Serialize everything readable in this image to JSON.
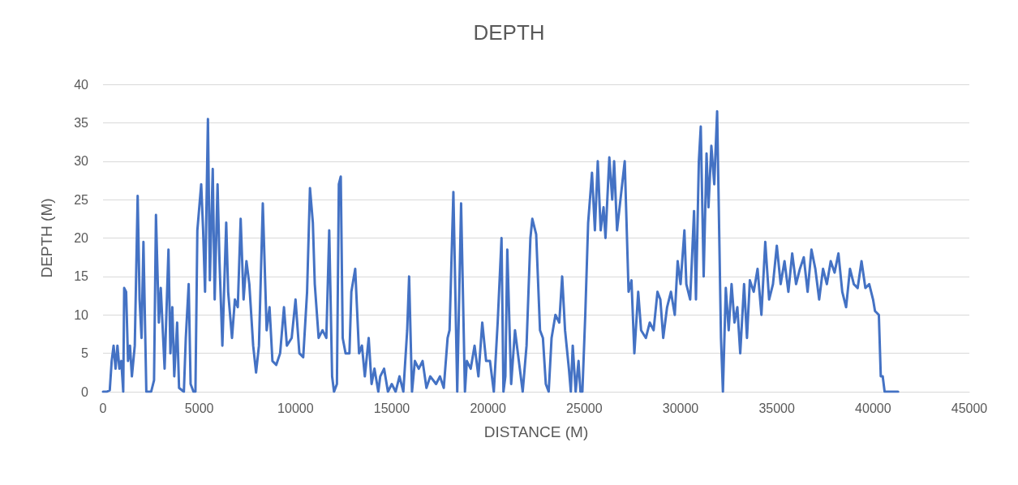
{
  "chart_data": {
    "type": "line",
    "title": "DEPTH",
    "xlabel": "DISTANCE (M)",
    "ylabel": "DEPTH (M)",
    "xlim": [
      0,
      45000
    ],
    "xticks": [
      0,
      5000,
      10000,
      15000,
      20000,
      25000,
      30000,
      35000,
      40000,
      45000
    ],
    "ylim": [
      0,
      40
    ],
    "yticks": [
      0,
      5,
      10,
      15,
      20,
      25,
      30,
      35,
      40
    ],
    "grid": "y",
    "marker": "none",
    "line_style": "solid",
    "x": [
      0,
      200,
      350,
      450,
      550,
      650,
      750,
      850,
      950,
      1050,
      1100,
      1200,
      1300,
      1400,
      1500,
      1650,
      1800,
      1900,
      2000,
      2100,
      2250,
      2500,
      2650,
      2750,
      2900,
      3000,
      3200,
      3400,
      3500,
      3600,
      3700,
      3850,
      3950,
      4200,
      4300,
      4450,
      4550,
      4700,
      4800,
      4900,
      5000,
      5100,
      5200,
      5300,
      5450,
      5550,
      5700,
      5800,
      5950,
      6050,
      6200,
      6400,
      6500,
      6700,
      6850,
      7000,
      7150,
      7300,
      7450,
      7600,
      7800,
      7950,
      8100,
      8300,
      8500,
      8650,
      8800,
      9000,
      9200,
      9400,
      9550,
      9800,
      10000,
      10200,
      10400,
      10600,
      10750,
      10900,
      11000,
      11200,
      11400,
      11600,
      11750,
      11900,
      12000,
      12150,
      12250,
      12350,
      12450,
      12600,
      12800,
      12900,
      13100,
      13300,
      13450,
      13600,
      13800,
      13950,
      14100,
      14300,
      14400,
      14600,
      14800,
      15000,
      15200,
      15400,
      15600,
      15800,
      15900,
      16050,
      16200,
      16400,
      16600,
      16800,
      17000,
      17300,
      17500,
      17700,
      17900,
      18000,
      18200,
      18400,
      18600,
      18800,
      18900,
      19100,
      19300,
      19500,
      19700,
      19900,
      20100,
      20300,
      20500,
      20700,
      20800,
      20900,
      21000,
      21200,
      21400,
      21600,
      21800,
      22000,
      22200,
      22300,
      22500,
      22700,
      22850,
      23000,
      23150,
      23300,
      23500,
      23700,
      23850,
      24000,
      24200,
      24300,
      24400,
      24550,
      24700,
      24800,
      24900,
      25050,
      25200,
      25400,
      25550,
      25700,
      25850,
      26000,
      26100,
      26300,
      26450,
      26550,
      26700,
      26900,
      27100,
      27300,
      27450,
      27600,
      27800,
      27950,
      28200,
      28400,
      28600,
      28800,
      28950,
      29100,
      29300,
      29500,
      29700,
      29850,
      30000,
      30200,
      30300,
      30500,
      30700,
      30800,
      30950,
      31050,
      31200,
      31350,
      31450,
      31600,
      31750,
      31900,
      32100,
      32200,
      32350,
      32500,
      32650,
      32800,
      32950,
      33100,
      33300,
      33450,
      33600,
      33800,
      34000,
      34200,
      34400,
      34600,
      34800,
      35000,
      35200,
      35400,
      35600,
      35800,
      36000,
      36200,
      36400,
      36600,
      36800,
      37000,
      37200,
      37400,
      37600,
      37800,
      38000,
      38200,
      38400,
      38600,
      38800,
      39000,
      39200,
      39400,
      39600,
      39800,
      40000,
      40100,
      40300,
      40400,
      40500,
      40600,
      41300
    ],
    "series": [
      {
        "color": "#4472c4",
        "values": [
          0,
          0,
          0.2,
          4,
          6,
          3,
          6,
          3,
          4,
          0,
          13.5,
          13,
          4,
          6,
          2,
          6,
          25.5,
          12,
          7,
          19.5,
          0,
          0,
          1.5,
          23,
          9,
          13.5,
          3,
          18.5,
          5,
          11,
          2,
          9,
          0.5,
          0,
          7,
          14,
          1,
          0,
          0,
          21,
          24,
          27,
          21,
          13,
          35.5,
          14.5,
          29,
          12,
          27,
          17,
          6,
          22,
          13,
          7,
          12,
          11,
          22.5,
          12,
          17,
          14,
          6,
          2.5,
          6,
          24.5,
          8,
          11,
          4,
          3.5,
          5,
          11,
          6,
          7,
          12,
          5,
          4.5,
          13,
          26.5,
          22,
          14,
          7,
          8,
          7,
          21,
          2,
          0,
          1,
          27,
          28,
          7,
          5,
          5,
          13,
          16,
          5,
          6,
          2,
          7,
          1,
          3,
          0,
          2,
          3,
          0,
          1,
          0,
          2,
          0,
          8,
          15,
          0,
          4,
          3,
          4,
          0.5,
          2,
          1,
          2,
          0.5,
          7,
          8,
          26,
          0,
          24.5,
          0,
          4,
          3,
          6,
          2,
          9,
          4,
          4,
          0,
          9,
          20,
          0,
          2,
          18.5,
          1,
          8,
          4,
          0,
          6,
          20,
          22.5,
          20.5,
          8,
          7,
          1,
          0,
          7,
          10,
          9,
          15,
          8,
          3,
          0,
          6,
          0,
          4,
          0,
          0,
          10,
          22,
          28.5,
          21,
          30,
          21,
          24,
          20,
          30.5,
          25,
          30,
          21,
          25.5,
          30,
          13,
          14.5,
          5,
          13,
          8,
          7,
          9,
          8,
          13,
          12,
          7,
          11,
          13,
          10,
          17,
          14,
          21,
          14,
          12,
          23.5,
          12,
          30,
          34.5,
          15,
          31,
          24,
          32,
          27,
          36.5,
          7,
          0,
          13.5,
          8,
          14,
          9,
          11,
          5,
          14,
          7,
          14.5,
          13,
          16,
          10,
          19.5,
          12,
          14,
          19,
          14,
          17,
          13,
          18,
          14,
          16,
          17.5,
          13,
          18.5,
          16,
          12,
          16,
          14,
          17,
          15.5,
          18,
          13,
          11,
          16,
          14,
          13.5,
          17,
          13.5,
          14,
          12,
          10.5,
          10,
          2,
          2,
          0,
          0
        ]
      }
    ]
  }
}
